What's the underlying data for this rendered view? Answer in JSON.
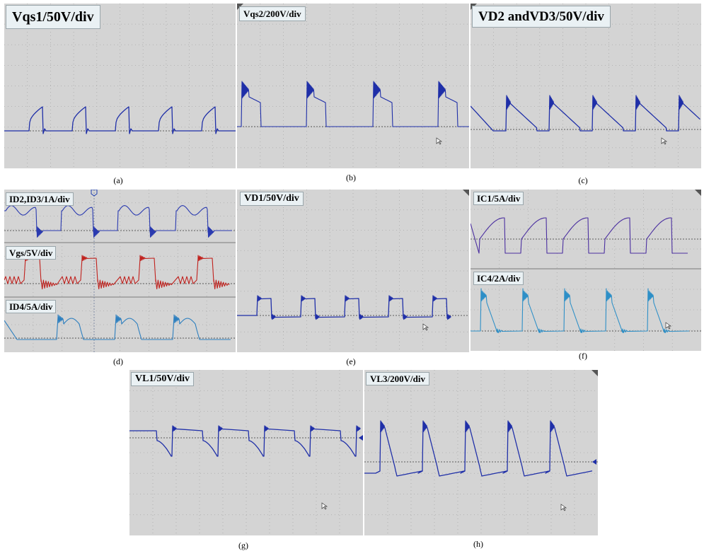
{
  "panels": [
    {
      "id": "a",
      "label": "Vqs1/50V/div",
      "caption": "(a)",
      "color": "#1f2fa8"
    },
    {
      "id": "b",
      "label": "Vqs2/200V/div",
      "caption": "(b)",
      "color": "#1f2fa8"
    },
    {
      "id": "c",
      "label": "VD2 andVD3/50V/div",
      "caption": "(c)",
      "color": "#1f2fa8"
    },
    {
      "id": "d1",
      "label": "ID2,ID3/1A/div",
      "caption": "(d)",
      "color": "#2a3ab0"
    },
    {
      "id": "d2",
      "label": "Vgs/5V/div",
      "caption": "",
      "color": "#c0201c"
    },
    {
      "id": "d3",
      "label": "ID4/5A/div",
      "caption": "",
      "color": "#2d7fbf"
    },
    {
      "id": "e",
      "label": "VD1/50V/div",
      "caption": "(e)",
      "color": "#1f2fa8"
    },
    {
      "id": "f1",
      "label": "IC1/5A/div",
      "caption": "(f)",
      "color": "#4b2fa0"
    },
    {
      "id": "f2",
      "label": "IC4/2A/div",
      "caption": "",
      "color": "#2d8fc7"
    },
    {
      "id": "g",
      "label": "VL1/50V/div",
      "caption": "(g)",
      "color": "#1f2fa8"
    },
    {
      "id": "h",
      "label": "VL3/200V/div",
      "caption": "(h)",
      "color": "#1f2fa8"
    }
  ],
  "chart_data": [
    {
      "type": "line",
      "label": "Vqs1/50V/div",
      "waveform": "square-ramp",
      "periods": 5
    },
    {
      "type": "line",
      "label": "Vqs2/200V/div",
      "waveform": "ringing-pulse",
      "periods": 4
    },
    {
      "type": "line",
      "label": "VD2 andVD3/50V/div",
      "waveform": "decay-spike",
      "periods": 5
    },
    {
      "type": "line",
      "label": "ID2,ID3/1A/div",
      "waveform": "ringing-square",
      "periods": 4
    },
    {
      "type": "line",
      "label": "Vgs/5V/div",
      "waveform": "gate-pulse",
      "periods": 4
    },
    {
      "type": "line",
      "label": "ID4/5A/div",
      "waveform": "current-hump",
      "periods": 4
    },
    {
      "type": "line",
      "label": "VD1/50V/div",
      "waveform": "square",
      "periods": 5
    },
    {
      "type": "line",
      "label": "IC1/5A/div",
      "waveform": "sawtooth-arc",
      "periods": 5
    },
    {
      "type": "line",
      "label": "IC4/2A/div",
      "waveform": "spike",
      "periods": 5
    },
    {
      "type": "line",
      "label": "VL1/50V/div",
      "waveform": "neg-decay",
      "periods": 5
    },
    {
      "type": "line",
      "label": "VL3/200V/div",
      "waveform": "pos-spike",
      "periods": 5
    }
  ]
}
